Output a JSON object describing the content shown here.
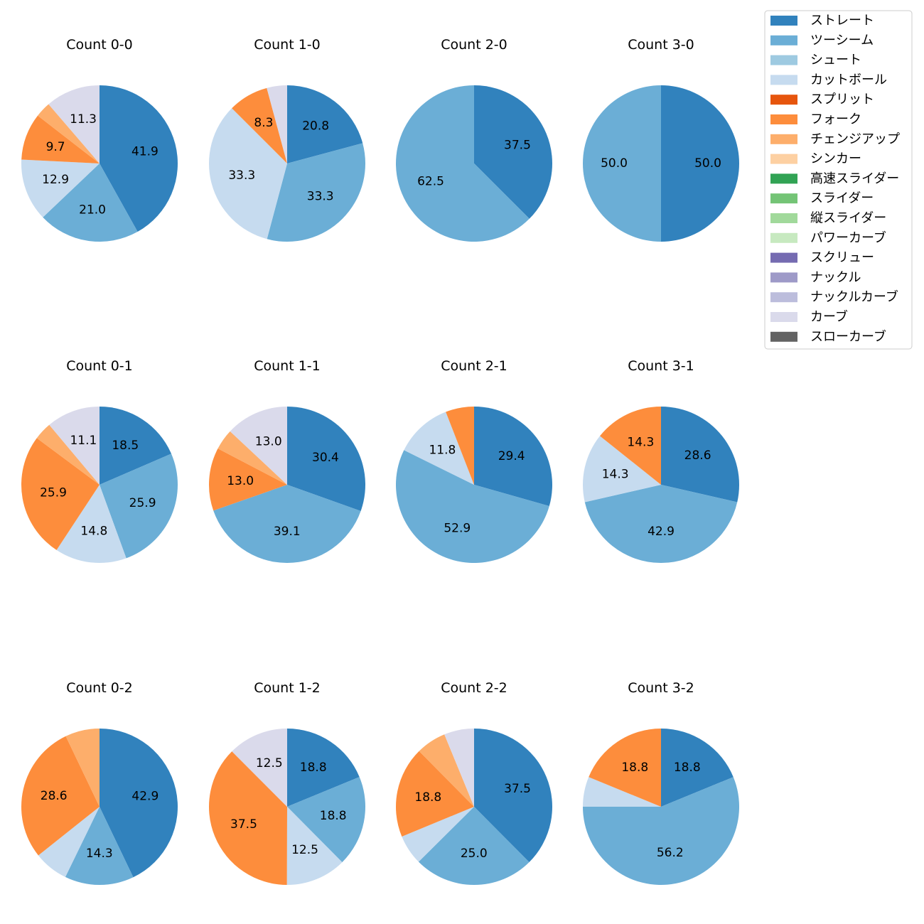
{
  "chart_data": {
    "type": "pie",
    "categories": [
      "ストレート",
      "ツーシーム",
      "シュート",
      "カットボール",
      "スプリット",
      "フォーク",
      "チェンジアップ",
      "シンカー",
      "高速スライダー",
      "スライダー",
      "縦スライダー",
      "パワーカーブ",
      "スクリュー",
      "ナックル",
      "ナックルカーブ",
      "カーブ",
      "スローカーブ"
    ],
    "colors": [
      "#3182bd",
      "#6baed6",
      "#9ecae1",
      "#c6dbef",
      "#e6550d",
      "#fd8d3c",
      "#fdae6b",
      "#fdd0a2",
      "#31a354",
      "#74c476",
      "#a1d99b",
      "#c7e9c0",
      "#756bb1",
      "#9e9ac8",
      "#bcbddc",
      "#dadaeb",
      "#636363"
    ],
    "legend_position": "top-right",
    "pies": [
      {
        "title": "Count 0-0",
        "slices": [
          {
            "category": "ストレート",
            "value": 41.9,
            "label": "41.9"
          },
          {
            "category": "ツーシーム",
            "value": 21.0,
            "label": "21.0"
          },
          {
            "category": "カットボール",
            "value": 12.9,
            "label": "12.9"
          },
          {
            "category": "フォーク",
            "value": 9.7,
            "label": "9.7"
          },
          {
            "category": "チェンジアップ",
            "value": 3.2,
            "label": ""
          },
          {
            "category": "カーブ",
            "value": 11.3,
            "label": "11.3"
          }
        ]
      },
      {
        "title": "Count 1-0",
        "slices": [
          {
            "category": "ストレート",
            "value": 20.8,
            "label": "20.8"
          },
          {
            "category": "ツーシーム",
            "value": 33.3,
            "label": "33.3"
          },
          {
            "category": "カットボール",
            "value": 33.3,
            "label": "33.3"
          },
          {
            "category": "フォーク",
            "value": 8.3,
            "label": "8.3"
          },
          {
            "category": "カーブ",
            "value": 4.2,
            "label": ""
          }
        ]
      },
      {
        "title": "Count 2-0",
        "slices": [
          {
            "category": "ストレート",
            "value": 37.5,
            "label": "37.5"
          },
          {
            "category": "ツーシーム",
            "value": 62.5,
            "label": "62.5"
          }
        ]
      },
      {
        "title": "Count 3-0",
        "slices": [
          {
            "category": "ストレート",
            "value": 50.0,
            "label": "50.0"
          },
          {
            "category": "ツーシーム",
            "value": 50.0,
            "label": "50.0"
          }
        ]
      },
      {
        "title": "Count 0-1",
        "slices": [
          {
            "category": "ストレート",
            "value": 18.5,
            "label": "18.5"
          },
          {
            "category": "ツーシーム",
            "value": 25.9,
            "label": "25.9"
          },
          {
            "category": "カットボール",
            "value": 14.8,
            "label": "14.8"
          },
          {
            "category": "フォーク",
            "value": 25.9,
            "label": "25.9"
          },
          {
            "category": "チェンジアップ",
            "value": 3.7,
            "label": ""
          },
          {
            "category": "カーブ",
            "value": 11.1,
            "label": "11.1"
          }
        ]
      },
      {
        "title": "Count 1-1",
        "slices": [
          {
            "category": "ストレート",
            "value": 30.4,
            "label": "30.4"
          },
          {
            "category": "ツーシーム",
            "value": 39.1,
            "label": "39.1"
          },
          {
            "category": "フォーク",
            "value": 13.0,
            "label": "13.0"
          },
          {
            "category": "チェンジアップ",
            "value": 4.3,
            "label": ""
          },
          {
            "category": "カーブ",
            "value": 13.0,
            "label": "13.0"
          }
        ]
      },
      {
        "title": "Count 2-1",
        "slices": [
          {
            "category": "ストレート",
            "value": 29.4,
            "label": "29.4"
          },
          {
            "category": "ツーシーム",
            "value": 52.9,
            "label": "52.9"
          },
          {
            "category": "カットボール",
            "value": 11.8,
            "label": "11.8"
          },
          {
            "category": "フォーク",
            "value": 5.9,
            "label": ""
          }
        ]
      },
      {
        "title": "Count 3-1",
        "slices": [
          {
            "category": "ストレート",
            "value": 28.6,
            "label": "28.6"
          },
          {
            "category": "ツーシーム",
            "value": 42.9,
            "label": "42.9"
          },
          {
            "category": "カットボール",
            "value": 14.3,
            "label": "14.3"
          },
          {
            "category": "フォーク",
            "value": 14.3,
            "label": "14.3"
          }
        ]
      },
      {
        "title": "Count 0-2",
        "slices": [
          {
            "category": "ストレート",
            "value": 42.9,
            "label": "42.9"
          },
          {
            "category": "ツーシーム",
            "value": 14.3,
            "label": "14.3"
          },
          {
            "category": "カットボール",
            "value": 7.1,
            "label": ""
          },
          {
            "category": "フォーク",
            "value": 28.6,
            "label": "28.6"
          },
          {
            "category": "チェンジアップ",
            "value": 7.1,
            "label": ""
          }
        ]
      },
      {
        "title": "Count 1-2",
        "slices": [
          {
            "category": "ストレート",
            "value": 18.8,
            "label": "18.8"
          },
          {
            "category": "ツーシーム",
            "value": 18.8,
            "label": "18.8"
          },
          {
            "category": "カットボール",
            "value": 12.5,
            "label": "12.5"
          },
          {
            "category": "フォーク",
            "value": 37.5,
            "label": "37.5"
          },
          {
            "category": "カーブ",
            "value": 12.5,
            "label": "12.5"
          }
        ]
      },
      {
        "title": "Count 2-2",
        "slices": [
          {
            "category": "ストレート",
            "value": 37.5,
            "label": "37.5"
          },
          {
            "category": "ツーシーム",
            "value": 25.0,
            "label": "25.0"
          },
          {
            "category": "カットボール",
            "value": 6.2,
            "label": ""
          },
          {
            "category": "フォーク",
            "value": 18.8,
            "label": "18.8"
          },
          {
            "category": "チェンジアップ",
            "value": 6.2,
            "label": ""
          },
          {
            "category": "カーブ",
            "value": 6.2,
            "label": ""
          }
        ]
      },
      {
        "title": "Count 3-2",
        "slices": [
          {
            "category": "ストレート",
            "value": 18.8,
            "label": "18.8"
          },
          {
            "category": "ツーシーム",
            "value": 56.2,
            "label": "56.2"
          },
          {
            "category": "カットボール",
            "value": 6.2,
            "label": ""
          },
          {
            "category": "フォーク",
            "value": 18.8,
            "label": "18.8"
          }
        ]
      }
    ]
  }
}
